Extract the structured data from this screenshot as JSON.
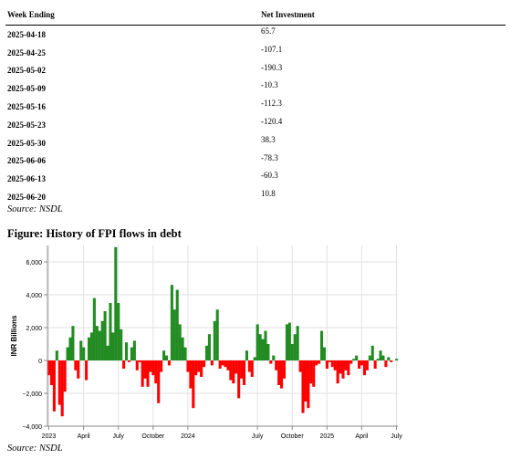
{
  "table": {
    "headers": [
      "Week Ending",
      "Net Investment"
    ],
    "rows": [
      {
        "week": "2025-04-18",
        "value": "65.7"
      },
      {
        "week": "2025-04-25",
        "value": "-107.1"
      },
      {
        "week": "2025-05-02",
        "value": "-190.3"
      },
      {
        "week": "2025-05-09",
        "value": "-10.3"
      },
      {
        "week": "2025-05-16",
        "value": "-112.3"
      },
      {
        "week": "2025-05-23",
        "value": "-120.4"
      },
      {
        "week": "2025-05-30",
        "value": "38.3"
      },
      {
        "week": "2025-06-06",
        "value": "-78.3"
      },
      {
        "week": "2025-06-13",
        "value": "-60.3"
      },
      {
        "week": "2025-06-20",
        "value": "10.8"
      }
    ],
    "source": "Source: NSDL"
  },
  "figure": {
    "title": "Figure: History of FPI flows in debt",
    "source": "Source: NSDL"
  },
  "chart_data": {
    "type": "bar",
    "ylabel": "INR Billions",
    "xlabel": "",
    "ylim": [
      -4000,
      7000
    ],
    "yticks": [
      -4000,
      -2000,
      0,
      2000,
      4000,
      6000
    ],
    "ytick_labels": [
      "−4,000",
      "−2,000",
      "0",
      "2,000",
      "4,000",
      "6,000"
    ],
    "xticks": [
      {
        "label": "2023",
        "index": 0
      },
      {
        "label": "April",
        "index": 13
      },
      {
        "label": "July",
        "index": 26
      },
      {
        "label": "October",
        "index": 39
      },
      {
        "label": "2024",
        "index": 52
      },
      {
        "label": "July",
        "index": 78
      },
      {
        "label": "October",
        "index": 91
      },
      {
        "label": "2025",
        "index": 104
      },
      {
        "label": "April",
        "index": 117
      },
      {
        "label": "July",
        "index": 130
      }
    ],
    "grid": true,
    "colors": {
      "positive": "#228b22",
      "negative": "#ff0000"
    },
    "values": [
      -900,
      -1500,
      -3100,
      600,
      -2700,
      -3400,
      -1900,
      800,
      1400,
      2100,
      -600,
      -1100,
      1200,
      800,
      -1200,
      1400,
      1700,
      3800,
      2100,
      1800,
      2400,
      3000,
      900,
      3500,
      1700,
      6900,
      3500,
      1900,
      -500,
      1100,
      -100,
      800,
      1200,
      -600,
      -100,
      -1600,
      -1100,
      -1600,
      -700,
      -900,
      -1400,
      -2600,
      -700,
      600,
      300,
      -300,
      4600,
      3100,
      4300,
      2200,
      1400,
      800,
      -700,
      -1700,
      -2900,
      -900,
      -700,
      -1000,
      -400,
      900,
      1600,
      -300,
      2400,
      3100,
      -500,
      -300,
      -400,
      -600,
      -1200,
      -1400,
      -800,
      -2300,
      -1100,
      -1500,
      600,
      -700,
      -1000,
      200,
      2200,
      1600,
      1300,
      1800,
      1000,
      -200,
      300,
      -600,
      -1500,
      -1700,
      -1100,
      2200,
      2300,
      1000,
      1600,
      2100,
      -700,
      -3200,
      -2500,
      -2900,
      -1400,
      -1600,
      -300,
      -200,
      1800,
      800,
      -500,
      -100,
      -400,
      -600,
      -1400,
      -800,
      -1100,
      -600,
      -900,
      -200,
      100,
      300,
      -500,
      -300,
      -900,
      -600,
      300,
      900,
      -500,
      100,
      600,
      300,
      -400,
      200,
      -100,
      0,
      100
    ]
  }
}
